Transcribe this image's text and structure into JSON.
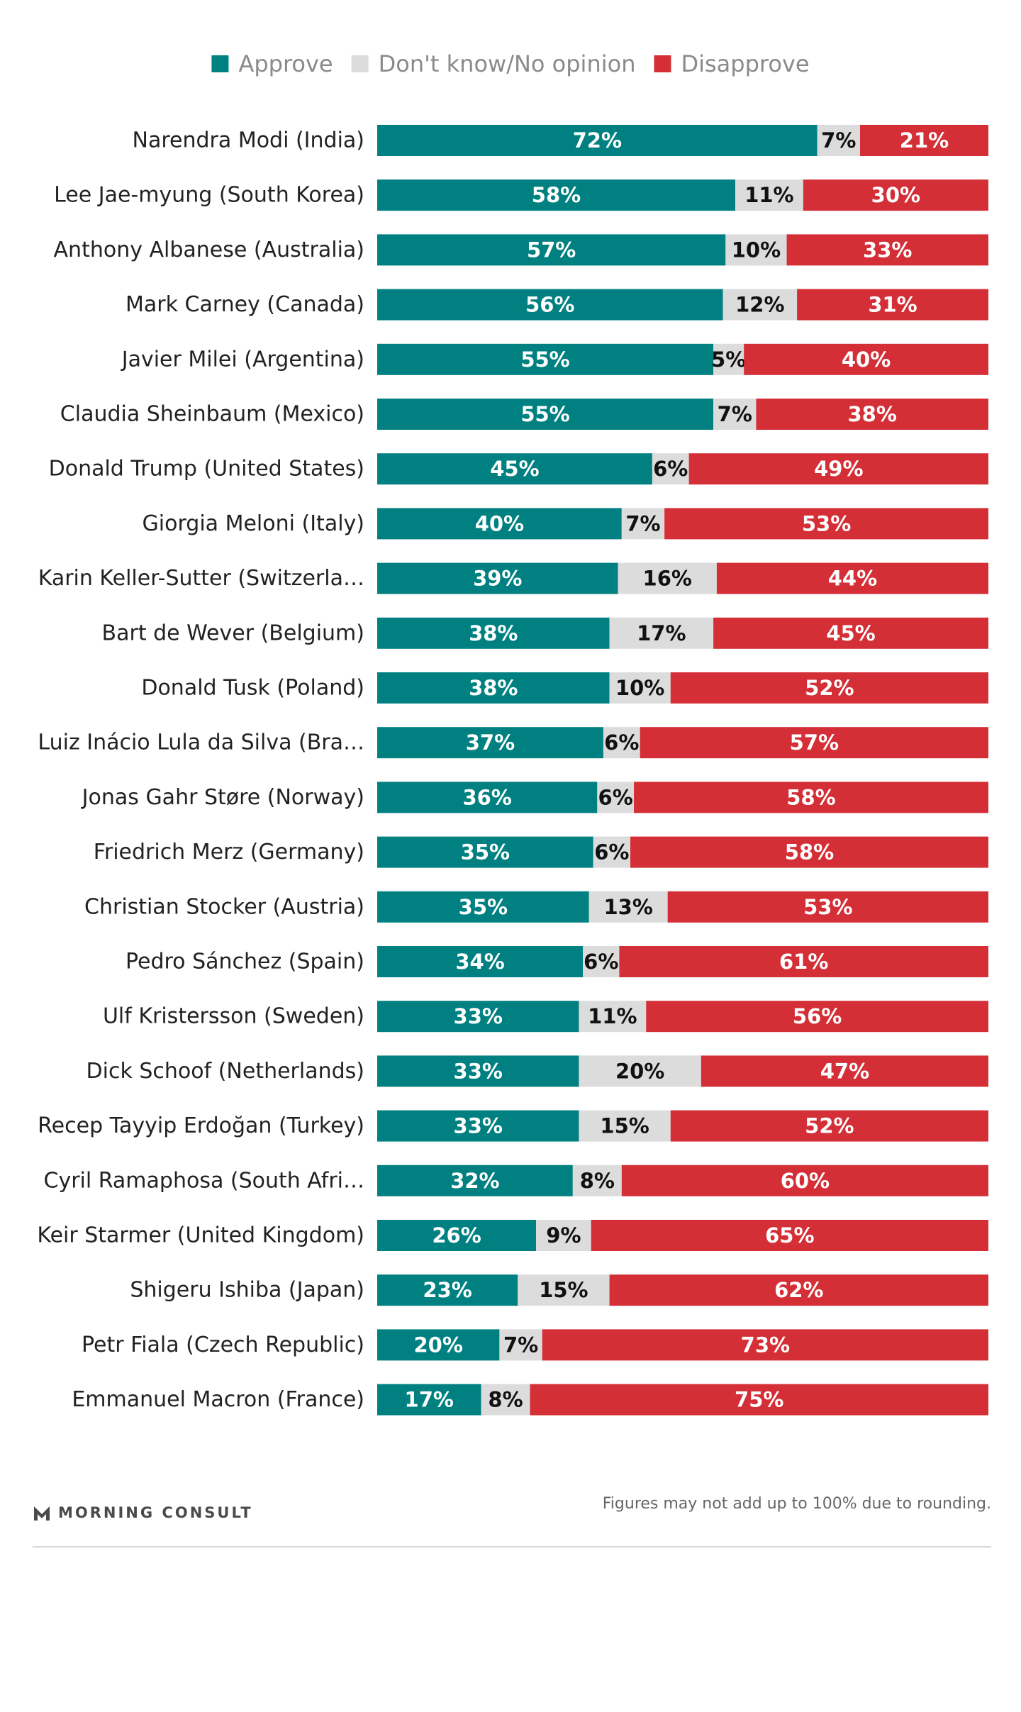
{
  "chart_data": {
    "type": "bar",
    "orientation": "horizontal",
    "stacked": true,
    "legend_position": "top",
    "categories": [
      "Narendra Modi (India)",
      "Lee Jae-myung (South Korea)",
      "Anthony Albanese (Australia)",
      "Mark Carney (Canada)",
      "Javier Milei (Argentina)",
      "Claudia Sheinbaum (Mexico)",
      "Donald Trump (United States)",
      "Giorgia Meloni (Italy)",
      "Karin Keller-Sutter (Switzerla…",
      "Bart de Wever (Belgium)",
      "Donald Tusk (Poland)",
      "Luiz Inácio Lula da Silva (Bra…",
      "Jonas Gahr Støre (Norway)",
      "Friedrich Merz (Germany)",
      "Christian Stocker (Austria)",
      "Pedro Sánchez (Spain)",
      "Ulf Kristersson (Sweden)",
      "Dick Schoof (Netherlands)",
      "Recep Tayyip Erdoğan (Turkey)",
      "Cyril Ramaphosa (South Afri…",
      "Keir Starmer (United Kingdom)",
      "Shigeru Ishiba (Japan)",
      "Petr Fiala (Czech Republic)",
      "Emmanuel Macron (France)"
    ],
    "series": [
      {
        "name": "Approve",
        "color": "#008080",
        "label_color": "#ffffff",
        "values": [
          72,
          58,
          57,
          56,
          55,
          55,
          45,
          40,
          39,
          38,
          38,
          37,
          36,
          35,
          35,
          34,
          33,
          33,
          33,
          32,
          26,
          23,
          20,
          17
        ]
      },
      {
        "name": "Don't know/No opinion",
        "color": "#dcdcdc",
        "label_color": "#111111",
        "values": [
          7,
          11,
          10,
          12,
          5,
          7,
          6,
          7,
          16,
          17,
          10,
          6,
          6,
          6,
          13,
          6,
          11,
          20,
          15,
          8,
          9,
          15,
          7,
          8
        ]
      },
      {
        "name": "Disapprove",
        "color": "#d42e36",
        "label_color": "#ffffff",
        "values": [
          21,
          30,
          33,
          31,
          40,
          38,
          49,
          53,
          44,
          45,
          52,
          57,
          58,
          58,
          53,
          61,
          56,
          47,
          52,
          60,
          65,
          62,
          73,
          75
        ]
      }
    ],
    "value_suffix": "%"
  },
  "footer": {
    "brand": "MORNING CONSULT",
    "brand_icon": "morning-consult-logo-icon",
    "note": "Figures may not add up to 100% due to rounding."
  }
}
